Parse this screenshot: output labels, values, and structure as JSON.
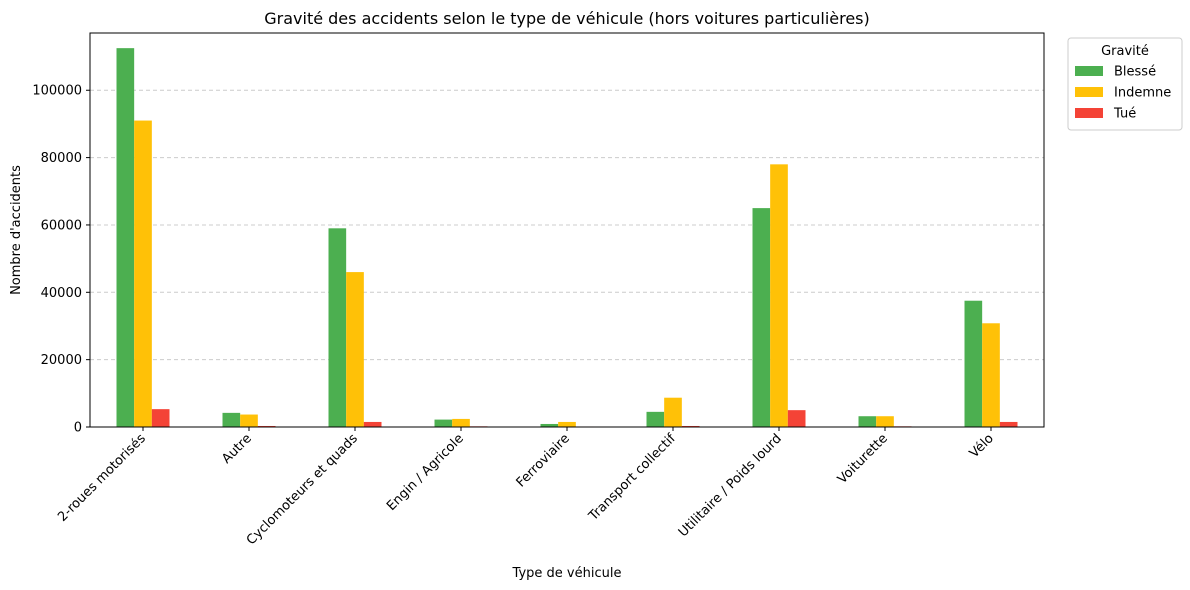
{
  "chart_data": {
    "type": "bar",
    "title": "Gravité des accidents selon le type de véhicule (hors voitures particulières)",
    "xlabel": "Type de véhicule",
    "ylabel": "Nombre d'accidents",
    "ylim": [
      0,
      117000
    ],
    "yticks": [
      0,
      20000,
      40000,
      60000,
      80000,
      100000
    ],
    "grid": "y-dashed",
    "legend": {
      "title": "Gravité",
      "placement": "outside-top-right"
    },
    "categories": [
      "2-roues motorisés",
      "Autre",
      "Cyclomoteurs et quads",
      "Engin / Agricole",
      "Ferroviaire",
      "Transport collectif",
      "Utilitaire / Poids lourd",
      "Voiturette",
      "Vélo"
    ],
    "series": [
      {
        "name": "Blessé",
        "color": "#4caf50",
        "values": [
          112500,
          4200,
          59000,
          2200,
          900,
          4500,
          65000,
          3200,
          37500
        ]
      },
      {
        "name": "Indemne",
        "color": "#ffc107",
        "values": [
          91000,
          3700,
          46000,
          2400,
          1500,
          8700,
          78000,
          3200,
          30800
        ]
      },
      {
        "name": "Tué",
        "color": "#f44336",
        "values": [
          5300,
          300,
          1500,
          200,
          150,
          300,
          5000,
          200,
          1500
        ]
      }
    ]
  }
}
